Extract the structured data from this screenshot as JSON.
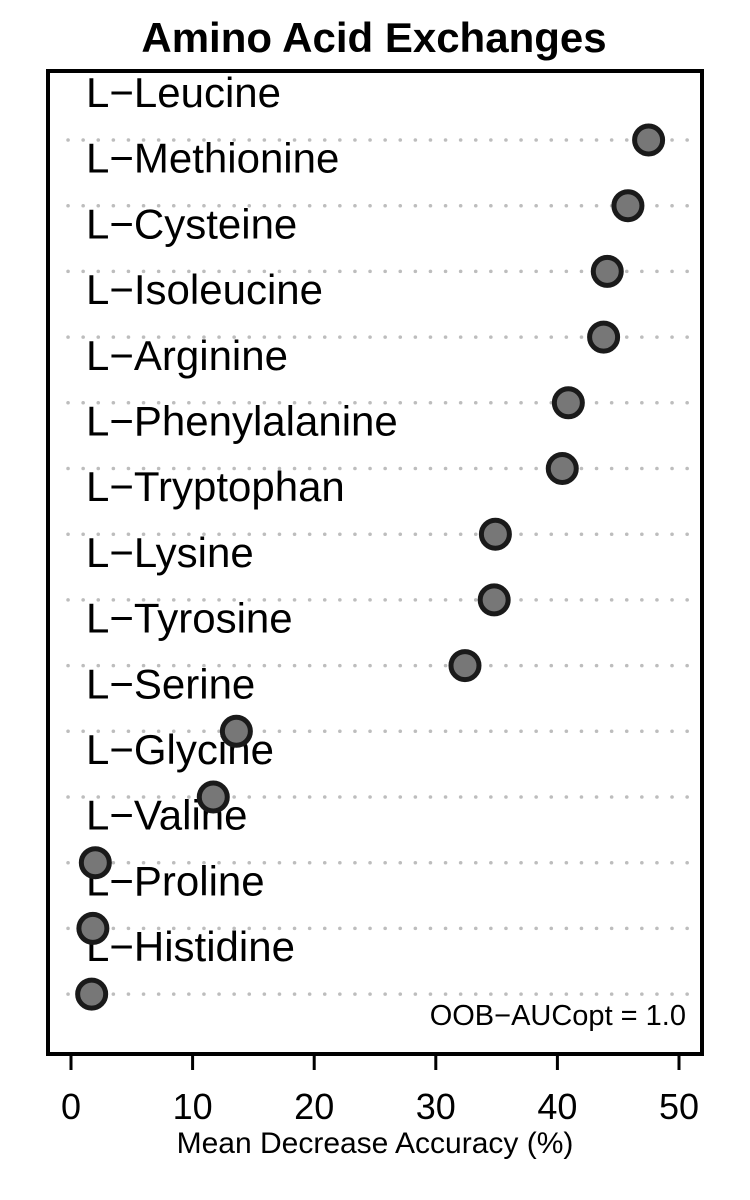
{
  "chart_data": {
    "type": "scatter",
    "title": "Amino Acid Exchanges",
    "xlabel": "Mean Decrease Accuracy (%)",
    "ylabel": "",
    "xlim": [
      0,
      50
    ],
    "xticks": [
      "0",
      "10",
      "20",
      "30",
      "40",
      "50"
    ],
    "categories": [
      "L−Leucine",
      "L−Methionine",
      "L−Cysteine",
      "L−Isoleucine",
      "L−Arginine",
      "L−Phenylalanine",
      "L−Tryptophan",
      "L−Lysine",
      "L−Tyrosine",
      "L−Serine",
      "L−Glycine",
      "L−Valine",
      "L−Proline",
      "L−Histidine"
    ],
    "values": [
      47.5,
      45.8,
      44.1,
      43.8,
      40.9,
      40.4,
      34.9,
      34.8,
      32.4,
      13.6,
      11.7,
      2.0,
      1.8,
      1.7
    ],
    "annotation": "OOB−AUCopt = 1.0",
    "point_color": "#777777",
    "grid": "dotted horizontal guides"
  }
}
